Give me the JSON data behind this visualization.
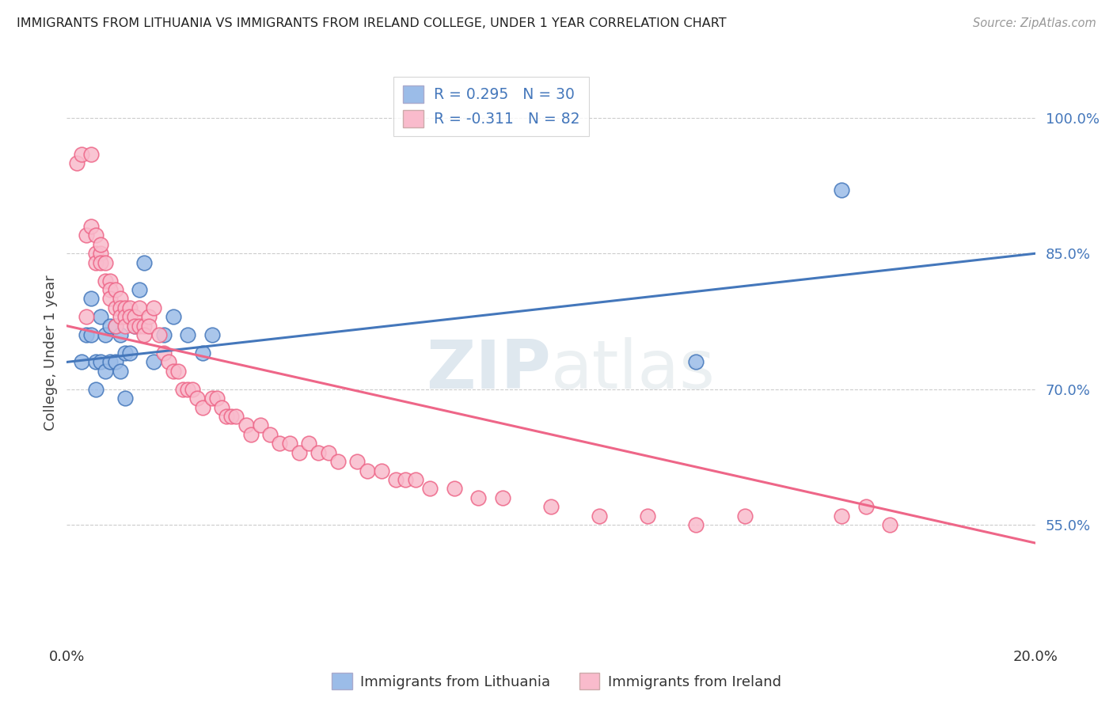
{
  "title": "IMMIGRANTS FROM LITHUANIA VS IMMIGRANTS FROM IRELAND COLLEGE, UNDER 1 YEAR CORRELATION CHART",
  "source": "Source: ZipAtlas.com",
  "ylabel": "College, Under 1 year",
  "right_yticks": [
    "100.0%",
    "85.0%",
    "70.0%",
    "55.0%"
  ],
  "right_ytick_vals": [
    1.0,
    0.85,
    0.7,
    0.55
  ],
  "xmin": 0.0,
  "xmax": 0.2,
  "ymin": 0.42,
  "ymax": 1.06,
  "r_blue": 0.295,
  "r_pink": -0.311,
  "n_blue": 30,
  "n_pink": 82,
  "blue_color": "#9BBCE8",
  "pink_color": "#F9BBCC",
  "blue_line_color": "#4477BB",
  "pink_line_color": "#EE6688",
  "watermark_zip": "ZIP",
  "watermark_atlas": "atlas",
  "blue_line_y0": 0.73,
  "blue_line_y1": 0.85,
  "pink_line_y0": 0.77,
  "pink_line_y1": 0.53,
  "blue_scatter_x": [
    0.003,
    0.004,
    0.005,
    0.005,
    0.006,
    0.006,
    0.007,
    0.007,
    0.008,
    0.008,
    0.009,
    0.009,
    0.01,
    0.01,
    0.011,
    0.011,
    0.012,
    0.012,
    0.013,
    0.014,
    0.015,
    0.016,
    0.018,
    0.02,
    0.022,
    0.025,
    0.028,
    0.03,
    0.13,
    0.16
  ],
  "blue_scatter_y": [
    0.73,
    0.76,
    0.8,
    0.76,
    0.73,
    0.7,
    0.78,
    0.73,
    0.76,
    0.72,
    0.77,
    0.73,
    0.77,
    0.73,
    0.76,
    0.72,
    0.69,
    0.74,
    0.74,
    0.77,
    0.81,
    0.84,
    0.73,
    0.76,
    0.78,
    0.76,
    0.74,
    0.76,
    0.73,
    0.92
  ],
  "pink_scatter_x": [
    0.002,
    0.003,
    0.004,
    0.004,
    0.005,
    0.005,
    0.006,
    0.006,
    0.006,
    0.007,
    0.007,
    0.007,
    0.008,
    0.008,
    0.009,
    0.009,
    0.009,
    0.01,
    0.01,
    0.01,
    0.011,
    0.011,
    0.011,
    0.012,
    0.012,
    0.012,
    0.013,
    0.013,
    0.014,
    0.014,
    0.015,
    0.015,
    0.016,
    0.016,
    0.017,
    0.017,
    0.018,
    0.019,
    0.02,
    0.021,
    0.022,
    0.023,
    0.024,
    0.025,
    0.026,
    0.027,
    0.028,
    0.03,
    0.031,
    0.032,
    0.033,
    0.034,
    0.035,
    0.037,
    0.038,
    0.04,
    0.042,
    0.044,
    0.046,
    0.048,
    0.05,
    0.052,
    0.054,
    0.056,
    0.06,
    0.062,
    0.065,
    0.068,
    0.07,
    0.072,
    0.075,
    0.08,
    0.085,
    0.09,
    0.1,
    0.11,
    0.12,
    0.13,
    0.14,
    0.16,
    0.165,
    0.17
  ],
  "pink_scatter_y": [
    0.95,
    0.96,
    0.78,
    0.87,
    0.96,
    0.88,
    0.87,
    0.85,
    0.84,
    0.85,
    0.84,
    0.86,
    0.84,
    0.82,
    0.82,
    0.81,
    0.8,
    0.81,
    0.79,
    0.77,
    0.8,
    0.79,
    0.78,
    0.79,
    0.78,
    0.77,
    0.79,
    0.78,
    0.78,
    0.77,
    0.79,
    0.77,
    0.77,
    0.76,
    0.78,
    0.77,
    0.79,
    0.76,
    0.74,
    0.73,
    0.72,
    0.72,
    0.7,
    0.7,
    0.7,
    0.69,
    0.68,
    0.69,
    0.69,
    0.68,
    0.67,
    0.67,
    0.67,
    0.66,
    0.65,
    0.66,
    0.65,
    0.64,
    0.64,
    0.63,
    0.64,
    0.63,
    0.63,
    0.62,
    0.62,
    0.61,
    0.61,
    0.6,
    0.6,
    0.6,
    0.59,
    0.59,
    0.58,
    0.58,
    0.57,
    0.56,
    0.56,
    0.55,
    0.56,
    0.56,
    0.57,
    0.55
  ]
}
